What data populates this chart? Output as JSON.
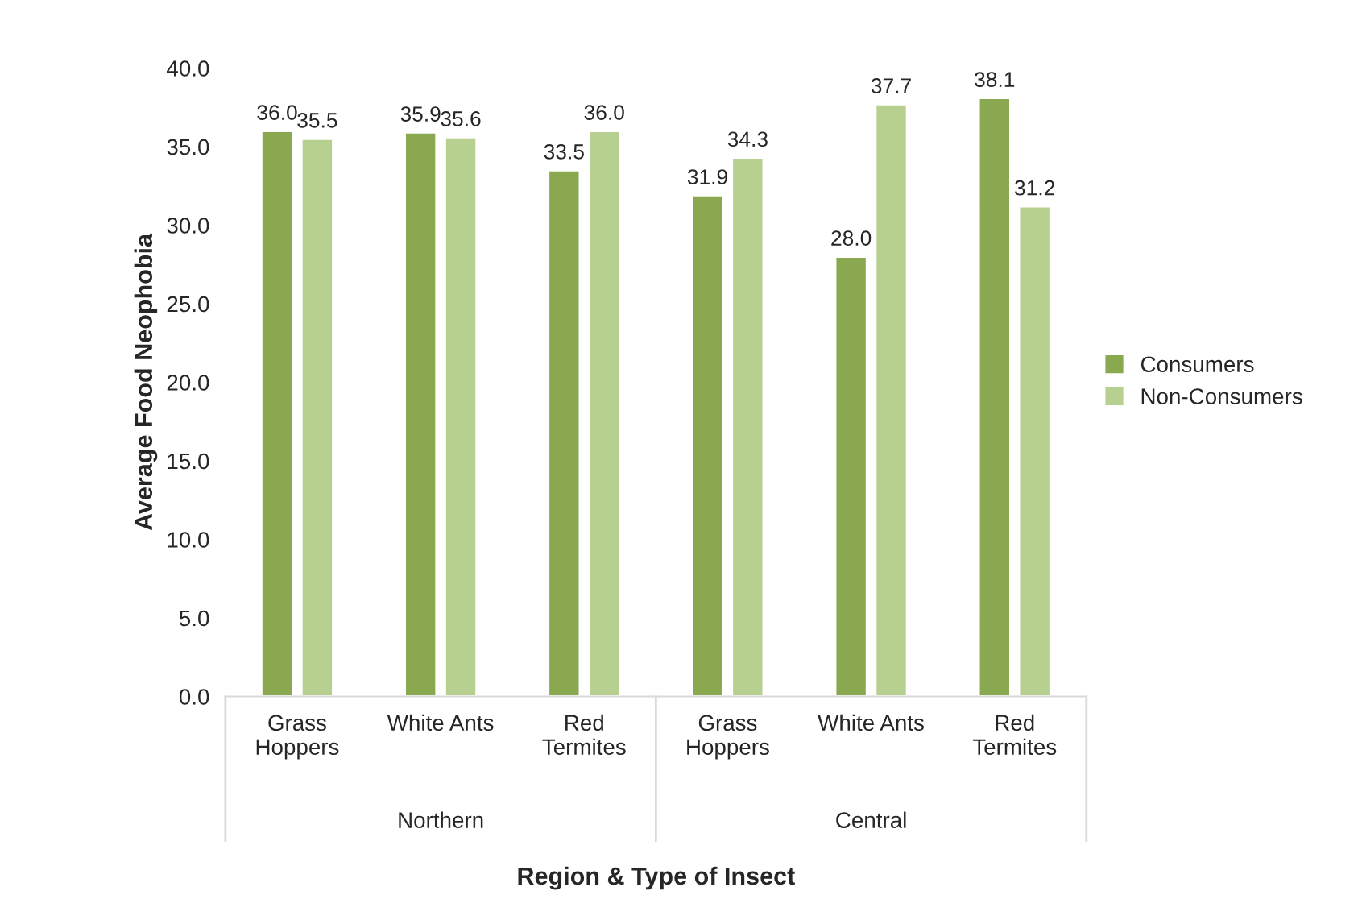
{
  "chart_data": {
    "type": "bar",
    "xlabel": "Region & Type of Insect",
    "ylabel": "Average Food Neophobia",
    "categories": [
      "Grass\nHoppers",
      "White Ants",
      "Red\nTermites",
      "Grass\nHoppers",
      "White Ants",
      "Red\nTermites"
    ],
    "series": [
      {
        "name": "Consumers",
        "color": "#8aa84f",
        "values": [
          36.0,
          35.9,
          33.5,
          31.9,
          28.0,
          38.1
        ],
        "value_labels": [
          "36.0",
          "35.9",
          "33.5",
          "31.9",
          "28.0",
          "38.1"
        ]
      },
      {
        "name": "Non-Consumers",
        "color": "#b8d08f",
        "values": [
          35.5,
          35.6,
          36.0,
          34.3,
          37.7,
          31.2
        ],
        "value_labels": [
          "35.5",
          "35.6",
          "36.0",
          "34.3",
          "37.7",
          "31.2"
        ]
      }
    ],
    "annotations": [
      "Northern",
      "Central"
    ],
    "ylim": [
      0,
      40
    ],
    "yticks": [
      {
        "value": 0,
        "label": "0.0"
      },
      {
        "value": 5,
        "label": "5.0"
      },
      {
        "value": 10,
        "label": "10.0"
      },
      {
        "value": 15,
        "label": "15.0"
      },
      {
        "value": 20,
        "label": "20.0"
      },
      {
        "value": 25,
        "label": "25.0"
      },
      {
        "value": 30,
        "label": "30.0"
      },
      {
        "value": 35,
        "label": "35.0"
      },
      {
        "value": 40,
        "label": "40.0"
      }
    ],
    "grid": false,
    "legend": "right"
  }
}
